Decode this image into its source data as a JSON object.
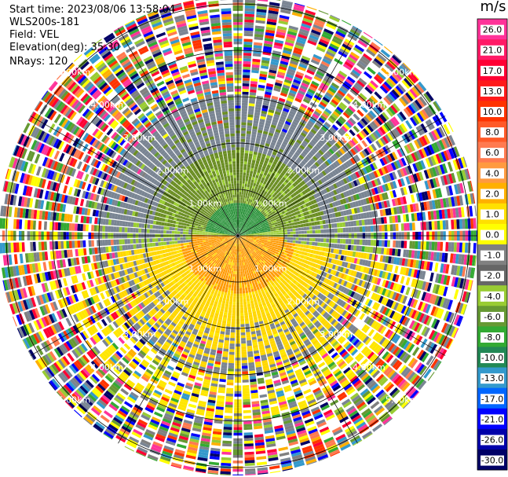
{
  "header": {
    "start_time": "Start time: 2023/08/06 13:58:04",
    "instrument": "WLS200s-181",
    "field": "Field: VEL",
    "elevation": "Elevation(deg): 35.30",
    "nrays": "NRays: 120"
  },
  "colorbar": {
    "unit": "m/s",
    "ticks": [
      "26.0",
      "21.0",
      "17.0",
      "13.0",
      "10.0",
      "8.0",
      "6.0",
      "4.0",
      "2.0",
      "1.0",
      "0.0",
      "-1.0",
      "-2.0",
      "-4.0",
      "-6.0",
      "-8.0",
      "-10.0",
      "-13.0",
      "-17.0",
      "-21.0",
      "-26.0",
      "-30.0"
    ],
    "colors": [
      "#ff3399",
      "#ff1a66",
      "#ff0033",
      "#ff1a1a",
      "#ff3300",
      "#ff5a28",
      "#ff7a50",
      "#ff9a40",
      "#ffb000",
      "#ffe000",
      "#ffff00",
      "#808080",
      "#666666",
      "#99cc33",
      "#669933",
      "#33aa33",
      "#228855",
      "#3399cc",
      "#0066ff",
      "#0000ff",
      "#0000aa",
      "#000066"
    ]
  },
  "chart_data": {
    "type": "ppi",
    "field": "VEL",
    "unit": "m/s",
    "nrays": 120,
    "range_rings_km": [
      1.0,
      2.0,
      3.0,
      4.0,
      5.0
    ],
    "ring_labels": [
      "1.00km",
      "2.00km",
      "3.00km",
      "4.00km",
      "5.00km"
    ],
    "grid": true,
    "vlim": [
      -30.0,
      26.0
    ],
    "regions": [
      {
        "description_range_km": [
          0,
          0.7
        ],
        "dominant_value": -6.0
      },
      {
        "description_range_km": [
          0.7,
          1.8
        ],
        "dominant_value": -3.0
      },
      {
        "description_range_km": [
          1.8,
          3.0
        ],
        "dominant_value": 0.0
      },
      {
        "description_range_km": [
          0,
          1.2
        ],
        "dominant_value": 5.0
      },
      {
        "description_range_km": [
          1.2,
          3.0
        ],
        "dominant_value": 2.0
      },
      {
        "description_range_km": [
          3.0,
          5.2
        ],
        "dominant_value": 9.9
      }
    ]
  }
}
